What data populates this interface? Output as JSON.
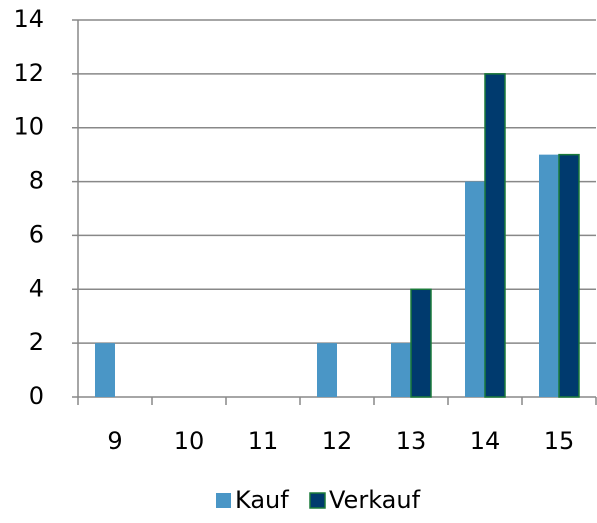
{
  "chart_data": {
    "type": "bar",
    "categories": [
      "9",
      "10",
      "11",
      "12",
      "13",
      "14",
      "15"
    ],
    "series": [
      {
        "name": "Kauf",
        "color": "#4a96c6",
        "values": [
          2,
          0,
          0,
          2,
          2,
          8,
          9
        ]
      },
      {
        "name": "Verkauf",
        "color": "#003a6e",
        "values": [
          0,
          0,
          0,
          0,
          4,
          12,
          9
        ]
      }
    ],
    "ylim": [
      0,
      14
    ],
    "yticks": [
      0,
      2,
      4,
      6,
      8,
      10,
      12,
      14
    ],
    "grid": true,
    "legend": "bottom"
  }
}
